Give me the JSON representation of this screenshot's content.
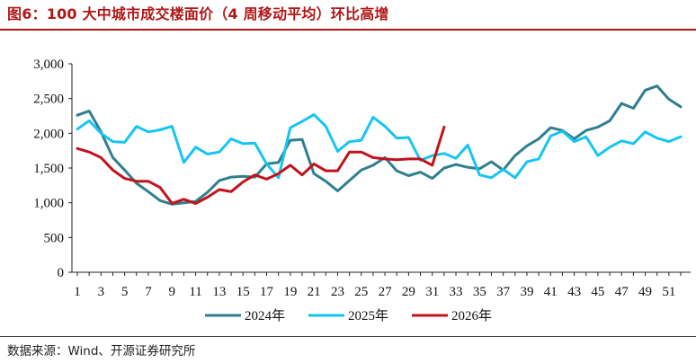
{
  "header": {
    "title": "图6：100 大中城市成交楼面价（4 周移动平均）环比高增"
  },
  "footer": {
    "source": "数据来源：Wind、开源证券研究所"
  },
  "chart_data": {
    "type": "line",
    "title": "图6：100 大中城市成交楼面价（4 周移动平均）环比高增",
    "xlabel": "",
    "ylabel": "",
    "x_range": [
      1,
      52
    ],
    "x_tick_labels": [
      "1",
      "3",
      "5",
      "7",
      "9",
      "11",
      "13",
      "15",
      "17",
      "19",
      "21",
      "23",
      "25",
      "27",
      "29",
      "31",
      "33",
      "35",
      "37",
      "39",
      "41",
      "43",
      "45",
      "47",
      "49",
      "51"
    ],
    "ylim": [
      0,
      3000
    ],
    "y_tick_labels": [
      "0",
      "500",
      "1,000",
      "1,500",
      "2,000",
      "2,500",
      "3,000"
    ],
    "grid": false,
    "legend_position": "bottom",
    "series": [
      {
        "name": "2024年",
        "color": "#2f7f8f",
        "x": [
          1,
          2,
          3,
          4,
          5,
          6,
          7,
          8,
          9,
          10,
          11,
          12,
          13,
          14,
          15,
          16,
          17,
          18,
          19,
          20,
          21,
          22,
          23,
          24,
          25,
          26,
          27,
          28,
          29,
          30,
          31,
          32,
          33,
          34,
          35,
          36,
          37,
          38,
          39,
          40,
          41,
          42,
          43,
          44,
          45,
          46,
          47,
          48,
          49,
          50,
          51,
          52
        ],
        "values": [
          2260,
          2320,
          2020,
          1650,
          1470,
          1280,
          1160,
          1030,
          980,
          1000,
          1020,
          1150,
          1320,
          1370,
          1380,
          1370,
          1560,
          1580,
          1900,
          1910,
          1420,
          1310,
          1170,
          1320,
          1470,
          1540,
          1650,
          1460,
          1390,
          1440,
          1350,
          1500,
          1550,
          1510,
          1490,
          1590,
          1470,
          1680,
          1820,
          1920,
          2080,
          2040,
          1920,
          2040,
          2090,
          2180,
          2430,
          2360,
          2620,
          2680,
          2490,
          2380
        ]
      },
      {
        "name": "2025年",
        "color": "#17c5f2",
        "x": [
          1,
          2,
          3,
          4,
          5,
          6,
          7,
          8,
          9,
          10,
          11,
          12,
          13,
          14,
          15,
          16,
          17,
          18,
          19,
          20,
          21,
          22,
          23,
          24,
          25,
          26,
          27,
          28,
          29,
          30,
          31,
          32,
          33,
          34,
          35,
          36,
          37,
          38,
          39,
          40,
          41,
          42,
          43,
          44,
          45,
          46,
          47,
          48,
          49,
          50,
          51,
          52
        ],
        "values": [
          2060,
          2180,
          2000,
          1880,
          1870,
          2100,
          2020,
          2050,
          2100,
          1580,
          1800,
          1700,
          1730,
          1920,
          1850,
          1860,
          1560,
          1360,
          2080,
          2170,
          2270,
          2100,
          1740,
          1880,
          1900,
          2230,
          2100,
          1930,
          1940,
          1610,
          1680,
          1710,
          1640,
          1830,
          1400,
          1360,
          1480,
          1360,
          1590,
          1630,
          1960,
          2030,
          1880,
          1950,
          1680,
          1800,
          1890,
          1850,
          2020,
          1930,
          1880,
          1950
        ]
      },
      {
        "name": "2026年",
        "color": "#c0131b",
        "x": [
          1,
          2,
          3,
          4,
          5,
          6,
          7,
          8,
          9,
          10,
          11,
          12,
          13,
          14,
          15,
          16,
          17,
          18,
          19,
          20,
          21,
          22,
          23,
          24,
          25,
          26,
          27,
          28,
          29,
          30,
          31,
          32
        ],
        "values": [
          1780,
          1730,
          1650,
          1470,
          1350,
          1310,
          1310,
          1220,
          990,
          1050,
          990,
          1080,
          1190,
          1160,
          1300,
          1400,
          1340,
          1420,
          1540,
          1400,
          1560,
          1460,
          1460,
          1730,
          1730,
          1650,
          1630,
          1620,
          1630,
          1630,
          1540,
          2090
        ]
      }
    ]
  }
}
